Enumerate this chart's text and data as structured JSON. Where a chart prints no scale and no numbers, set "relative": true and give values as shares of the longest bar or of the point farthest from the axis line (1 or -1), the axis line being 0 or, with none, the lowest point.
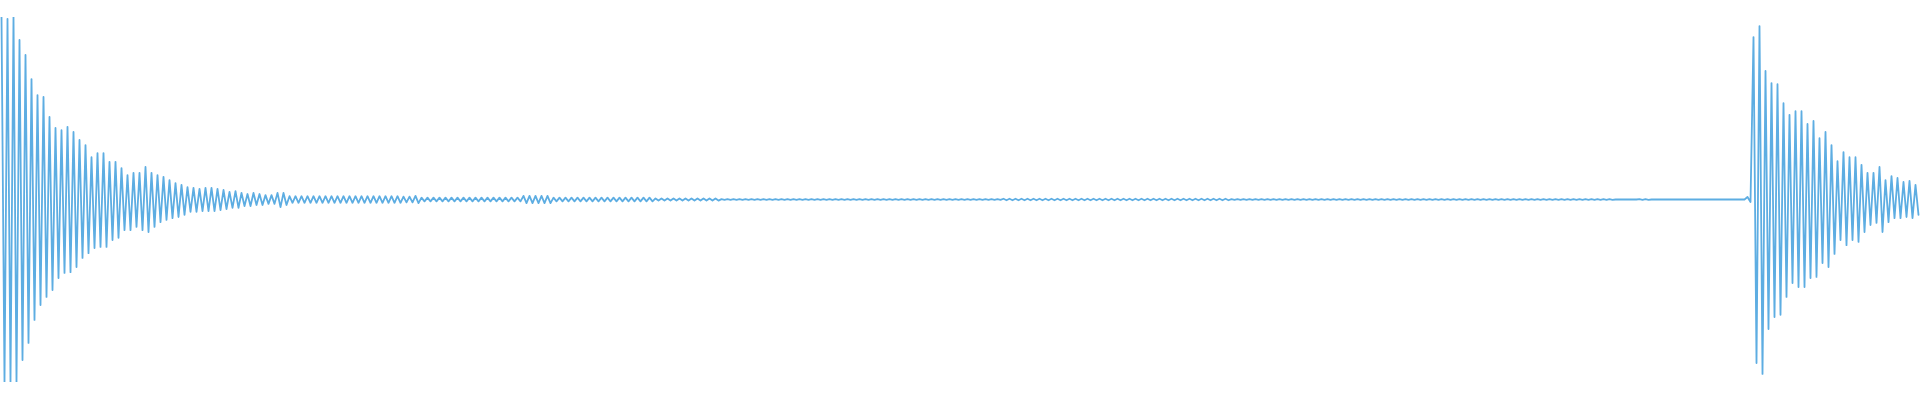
{
  "chart_data": {
    "type": "line",
    "relative": true,
    "color": "#5dade2",
    "categories": [
      null,
      null,
      null,
      null,
      null,
      null,
      null,
      null,
      null,
      null,
      null,
      null,
      null,
      null,
      null,
      null,
      null,
      null,
      null,
      null,
      null,
      null,
      null,
      null,
      null,
      null,
      null,
      null,
      null,
      null,
      null,
      null,
      null,
      null,
      null,
      null,
      null,
      null,
      null,
      null,
      null,
      null,
      null,
      null,
      null,
      null,
      null,
      null,
      null,
      null,
      null,
      null,
      null,
      null,
      null,
      null,
      null,
      null,
      null,
      null,
      null,
      null,
      null,
      null,
      null,
      null,
      null,
      null,
      null,
      null,
      null,
      null,
      null,
      null,
      null,
      null,
      null,
      null,
      null,
      null,
      null,
      null,
      null,
      null,
      null,
      null,
      null,
      null,
      null,
      null,
      null,
      null,
      null,
      null,
      null,
      null,
      null,
      null,
      null,
      null,
      null,
      null,
      null,
      null,
      null,
      null,
      null,
      null,
      null,
      null,
      null,
      null,
      null,
      null,
      null,
      null,
      null,
      null,
      null,
      null,
      null,
      null,
      null,
      null,
      null,
      null,
      null,
      null,
      null,
      null,
      null,
      null,
      null,
      null,
      null,
      null,
      null,
      null,
      null,
      null,
      null,
      null,
      null,
      null,
      null,
      null,
      null,
      null,
      null,
      null,
      null,
      null,
      null,
      null,
      null,
      null,
      null,
      null,
      null,
      null,
      null,
      null,
      null,
      null,
      null,
      null,
      null,
      null,
      null,
      null,
      null,
      null,
      null,
      null,
      null,
      null,
      null,
      null,
      null,
      null,
      null,
      null,
      null,
      null,
      null,
      null,
      null,
      null,
      null,
      null,
      null,
      null,
      null,
      null,
      null,
      null,
      null,
      null,
      null,
      null,
      null,
      null,
      null,
      null,
      null,
      null,
      null,
      null,
      null,
      null,
      null,
      null,
      null,
      null,
      null,
      null,
      null,
      null,
      null,
      null,
      null,
      null,
      null,
      null,
      null,
      null,
      null,
      null,
      null,
      null,
      null,
      null,
      null,
      null,
      null,
      null,
      null,
      null,
      null,
      null,
      null,
      null,
      null,
      null,
      null,
      null,
      null,
      null,
      null,
      null,
      null,
      null,
      null,
      null,
      null,
      null,
      null,
      null,
      null,
      null,
      null,
      null,
      null,
      null,
      null,
      null,
      null,
      null,
      null,
      null,
      null,
      null,
      null,
      null,
      null,
      null,
      null,
      null,
      null,
      null,
      null,
      null,
      null,
      null,
      null,
      null,
      null,
      null,
      null,
      null,
      null,
      null,
      null,
      null,
      null,
      null,
      null,
      null,
      null,
      null,
      null,
      null,
      null,
      null,
      null,
      null,
      null,
      null,
      null,
      null,
      null,
      null,
      null,
      null,
      null,
      null,
      null,
      null,
      null,
      null,
      null,
      null,
      null,
      null,
      null,
      null,
      null,
      null,
      null,
      null,
      null,
      null,
      null,
      null,
      null,
      null,
      null,
      null,
      null,
      null,
      null,
      null,
      null,
      null,
      null,
      null,
      null,
      null,
      null,
      null,
      null,
      null,
      null,
      null,
      null,
      null,
      null,
      null,
      null,
      null,
      null,
      null,
      null,
      null,
      null,
      null,
      null,
      null,
      null,
      null,
      null,
      null,
      null,
      null,
      null,
      null,
      null,
      null,
      null,
      null,
      null,
      null,
      null,
      null,
      null,
      null,
      null,
      null,
      null,
      null,
      null,
      null,
      null,
      null,
      null,
      null,
      null,
      null,
      null,
      null,
      null,
      null,
      null,
      null,
      null,
      null,
      null,
      null,
      null,
      null,
      null,
      null,
      null,
      null,
      null,
      null,
      null,
      null,
      null,
      null,
      null,
      null,
      null,
      null,
      null,
      null,
      null,
      null,
      null,
      null,
      null,
      null,
      null,
      null,
      null,
      null,
      null,
      null,
      null,
      null,
      null,
      null,
      null,
      null,
      null,
      null,
      null,
      null,
      null,
      null,
      null,
      null,
      null,
      null,
      null,
      null,
      null,
      null,
      null,
      null,
      null,
      null,
      null,
      null,
      null,
      null,
      null,
      null,
      null,
      null,
      null,
      null,
      null,
      null,
      null,
      null,
      null,
      null,
      null,
      null,
      null,
      null,
      null,
      null,
      null,
      null,
      null,
      null,
      null,
      null,
      null,
      null,
      null,
      null,
      null,
      null,
      null,
      null,
      null,
      null,
      null,
      null,
      null,
      null,
      null,
      null,
      null,
      null,
      null,
      null,
      null,
      null,
      null,
      null,
      null,
      null,
      null,
      null,
      null,
      null,
      null,
      null,
      null,
      null,
      null,
      null,
      null,
      null,
      null,
      null,
      null,
      null,
      null,
      null,
      null,
      null,
      null,
      null,
      null,
      null,
      null,
      null,
      null,
      null,
      null,
      null,
      null,
      null,
      null,
      null,
      null,
      null,
      null,
      null,
      null,
      null,
      null,
      null,
      null,
      null,
      null,
      null,
      null,
      null,
      null,
      null,
      null,
      null,
      null,
      null,
      null,
      null,
      null,
      null,
      null,
      null,
      null,
      null,
      null,
      null,
      null,
      null,
      null,
      null,
      null,
      null,
      null,
      null,
      null,
      null,
      null,
      null,
      null,
      null,
      null,
      null,
      null,
      null,
      null,
      null,
      null,
      null,
      null,
      null,
      null,
      null,
      null,
      null,
      null,
      null,
      null,
      null,
      null,
      null,
      null,
      null,
      null,
      null,
      null,
      null,
      null,
      null,
      null,
      null,
      null,
      null,
      null,
      null,
      null,
      null,
      null,
      null,
      null,
      null,
      null,
      null,
      null,
      null,
      null,
      null
    ],
    "values": [
      1.0,
      0,
      0.995,
      0,
      1.0,
      0,
      0.937,
      0.06,
      0.896,
      0.107,
      0.83,
      0.17,
      0.786,
      0.211,
      0.781,
      0.233,
      0.726,
      0.252,
      0.696,
      0.285,
      0.69,
      0.299,
      0.699,
      0.301,
      0.685,
      0.315,
      0.663,
      0.34,
      0.649,
      0.353,
      0.616,
      0.367,
      0.627,
      0.37,
      0.627,
      0.37,
      0.603,
      0.389,
      0.603,
      0.395,
      0.586,
      0.416,
      0.567,
      0.416,
      0.573,
      0.425,
      0.573,
      0.416,
      0.589,
      0.411,
      0.573,
      0.425,
      0.567,
      0.438,
      0.562,
      0.444,
      0.553,
      0.449,
      0.545,
      0.452,
      0.54,
      0.458,
      0.534,
      0.466,
      0.532,
      0.466,
      0.529,
      0.468,
      0.532,
      0.468,
      0.532,
      0.468,
      0.529,
      0.471,
      0.526,
      0.474,
      0.521,
      0.477,
      0.523,
      0.477,
      0.518,
      0.482,
      0.515,
      0.482,
      0.518,
      0.485,
      0.515,
      0.485,
      0.512,
      0.488,
      0.512,
      0.488,
      0.518,
      0.479,
      0.518,
      0.485,
      0.509,
      0.491,
      0.509,
      0.491,
      0.509,
      0.491,
      0.509,
      0.491,
      0.509,
      0.491,
      0.509,
      0.491,
      0.509,
      0.491,
      0.509,
      0.491,
      0.509,
      0.491,
      0.509,
      0.491,
      0.509,
      0.491,
      0.509,
      0.491,
      0.509,
      0.491,
      0.509,
      0.491,
      0.509,
      0.491,
      0.509,
      0.491,
      0.509,
      0.491,
      0.509,
      0.491,
      0.509,
      0.491,
      0.508,
      0.492,
      0.508,
      0.492,
      0.51,
      0.49,
      0.505,
      0.495,
      0.505,
      0.495,
      0.505,
      0.495,
      0.505,
      0.495,
      0.505,
      0.495,
      0.505,
      0.495,
      0.505,
      0.495,
      0.505,
      0.495,
      0.505,
      0.495,
      0.505,
      0.495,
      0.505,
      0.495,
      0.505,
      0.495,
      0.505,
      0.495,
      0.505,
      0.495,
      0.505,
      0.495,
      0.505,
      0.495,
      0.505,
      0.495,
      0.51,
      0.49,
      0.51,
      0.49,
      0.51,
      0.49,
      0.51,
      0.49,
      0.51,
      0.49,
      0.505,
      0.495,
      0.505,
      0.495,
      0.505,
      0.495,
      0.505,
      0.495,
      0.505,
      0.495,
      0.505,
      0.495,
      0.505,
      0.495,
      0.505,
      0.495,
      0.505,
      0.495,
      0.505,
      0.495,
      0.505,
      0.495,
      0.505,
      0.495,
      0.505,
      0.495,
      0.505,
      0.495,
      0.505,
      0.495,
      0.505,
      0.495,
      0.505,
      0.495,
      0.503,
      0.497,
      0.503,
      0.497,
      0.503,
      0.497,
      0.503,
      0.497,
      0.503,
      0.497,
      0.503,
      0.497,
      0.503,
      0.497,
      0.503,
      0.497,
      0.503,
      0.497,
      0.503,
      0.497,
      0.503,
      0.497,
      0.501,
      0.499,
      0.501,
      0.499,
      0.501,
      0.499,
      0.501,
      0.499,
      0.501,
      0.499,
      0.501,
      0.499,
      0.501,
      0.499,
      0.501,
      0.499,
      0.501,
      0.499,
      0.501,
      0.499,
      0.501,
      0.499,
      0.501,
      0.499,
      0.501,
      0.499,
      0.501,
      0.499,
      0.501,
      0.499,
      0.501,
      0.499,
      0.501,
      0.499,
      0.501,
      0.499,
      0.501,
      0.499,
      0.501,
      0.499,
      0.501,
      0.499,
      0.501,
      0.499,
      0.501,
      0.499,
      0.501,
      0.499,
      0.501,
      0.499,
      0.501,
      0.499,
      0.501,
      0.499,
      0.501,
      0.499,
      0.501,
      0.499,
      0.501,
      0.499,
      0.501,
      0.499,
      0.501,
      0.499,
      0.501,
      0.499,
      0.501,
      0.499,
      0.501,
      0.499,
      0.501,
      0.499,
      0.501,
      0.499,
      0.501,
      0.499,
      0.501,
      0.499,
      0.501,
      0.499,
      0.501,
      0.499,
      0.501,
      0.499,
      0.501,
      0.499,
      0.501,
      0.499,
      0.501,
      0.499,
      0.501,
      0.499,
      0.501,
      0.499,
      0.502,
      0.498,
      0.502,
      0.498,
      0.502,
      0.498,
      0.502,
      0.498,
      0.502,
      0.498,
      0.502,
      0.498,
      0.502,
      0.498,
      0.502,
      0.498,
      0.502,
      0.498,
      0.502,
      0.498,
      0.502,
      0.498,
      0.502,
      0.498,
      0.502,
      0.498,
      0.502,
      0.498,
      0.502,
      0.498,
      0.502,
      0.498,
      0.502,
      0.498,
      0.502,
      0.498,
      0.502,
      0.498,
      0.502,
      0.498,
      0.502,
      0.498,
      0.502,
      0.498,
      0.502,
      0.498,
      0.502,
      0.498,
      0.502,
      0.498,
      0.502,
      0.498,
      0.502,
      0.498,
      0.502,
      0.498,
      0.502,
      0.498,
      0.502,
      0.498,
      0.502,
      0.498,
      0.502,
      0.498,
      0.502,
      0.498,
      0.502,
      0.498,
      0.502,
      0.498,
      0.502,
      0.498,
      0.502,
      0.498,
      0.502,
      0.498,
      0.501,
      0.499,
      0.501,
      0.499,
      0.501,
      0.499,
      0.501,
      0.499,
      0.501,
      0.499,
      0.501,
      0.499,
      0.501,
      0.499,
      0.501,
      0.499,
      0.501,
      0.499,
      0.501,
      0.499,
      0.501,
      0.499,
      0.501,
      0.499,
      0.501,
      0.499,
      0.501,
      0.499,
      0.501,
      0.499,
      0.501,
      0.499,
      0.501,
      0.499,
      0.501,
      0.499,
      0.501,
      0.499,
      0.501,
      0.499,
      0.501,
      0.499,
      0.501,
      0.499,
      0.501,
      0.499,
      0.501,
      0.499,
      0.501,
      0.499,
      0.501,
      0.499,
      0.501,
      0.499,
      0.501,
      0.499,
      0.501,
      0.499,
      0.501,
      0.499,
      0.501,
      0.499,
      0.501,
      0.499,
      0.501,
      0.499,
      0.501,
      0.499,
      0.501,
      0.499,
      0.501,
      0.499,
      0.501,
      0.499,
      0.501,
      0.499,
      0.501,
      0.499,
      0.501,
      0.499,
      0.501,
      0.499,
      0.501,
      0.499,
      0.501,
      0.499,
      0.501,
      0.499,
      0.501,
      0.499,
      0.501,
      0.499,
      0.501,
      0.499,
      0.501,
      0.499,
      0.501,
      0.499,
      0.501,
      0.499,
      0.501,
      0.499,
      0.501,
      0.499,
      0.501,
      0.499,
      0.501,
      0.499,
      0.501,
      0.499,
      0.501,
      0.499,
      0.501,
      0.499,
      0.501,
      0.499,
      0.501,
      0.499,
      0.501,
      0.499,
      0.501,
      0.499,
      0.501,
      0.499,
      0.501,
      0.499,
      0.501,
      0.499,
      0.5,
      0.5,
      0.5,
      0.5,
      0.5,
      0.5,
      0.5,
      0.5,
      0.501,
      0.499,
      0.501,
      0.499,
      0.5,
      0.5,
      0.5,
      0.5,
      0.5,
      0.5,
      0.5,
      0.5,
      0.5,
      0.5,
      0.5,
      0.5,
      0.5,
      0.5,
      0.5,
      0.5,
      0.5,
      0.5,
      0.5,
      0.5,
      0.5,
      0.5,
      0.5,
      0.5,
      0.5,
      0.5,
      0.5,
      0.5,
      0.5,
      0.5,
      0.5,
      0.5,
      0.507,
      0.493,
      0.945,
      0.052,
      0.975,
      0.022,
      0.852,
      0.145,
      0.819,
      0.178,
      0.816,
      0.184,
      0.764,
      0.233,
      0.732,
      0.271,
      0.742,
      0.26,
      0.742,
      0.26,
      0.707,
      0.285,
      0.715,
      0.288,
      0.668,
      0.326,
      0.685,
      0.315,
      0.649,
      0.351,
      0.605,
      0.389,
      0.63,
      0.375,
      0.616,
      0.389,
      0.616,
      0.384,
      0.595,
      0.411,
      0.573,
      0.43,
      0.573,
      0.436,
      0.589,
      0.411,
      0.553,
      0.438,
      0.564,
      0.449,
      0.559,
      0.449,
      0.548,
      0.452,
      0.551,
      0.449,
      0.54,
      0.458
    ]
  }
}
